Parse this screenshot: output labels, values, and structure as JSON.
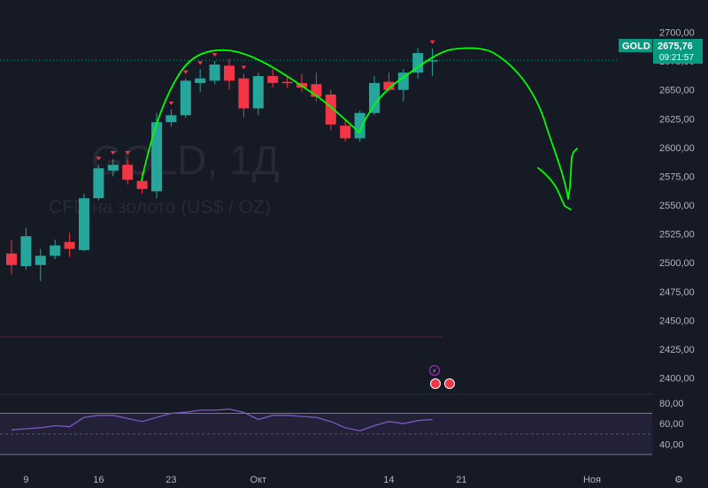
{
  "chart_data": {
    "type": "candlestick",
    "symbol": "GOLD",
    "interval": "1Д",
    "watermark_subtitle": "CFD на золото (US$ / OZ)",
    "last_price_label": "2675,76",
    "countdown": "09:21:57",
    "price_axis": {
      "range": [
        2395,
        2715
      ],
      "ticks": [
        "2700,00",
        "2675,00",
        "2650,00",
        "2625,00",
        "2600,00",
        "2575,00",
        "2550,00",
        "2525,00",
        "2500,00",
        "2475,00",
        "2450,00",
        "2425,00",
        "2400,00"
      ],
      "tick_values": [
        2700,
        2675,
        2650,
        2625,
        2600,
        2575,
        2550,
        2525,
        2500,
        2475,
        2450,
        2425,
        2400
      ]
    },
    "time_axis": {
      "labels": [
        {
          "text": "9",
          "bar": 1
        },
        {
          "text": "16",
          "bar": 6
        },
        {
          "text": "23",
          "bar": 11
        },
        {
          "text": "Окт",
          "bar": 17
        },
        {
          "text": "14",
          "bar": 26
        },
        {
          "text": "21",
          "bar": 31
        },
        {
          "text": "Ноя",
          "bar": 40
        }
      ]
    },
    "last_price": 2675.76,
    "candles": [
      {
        "o": 2508,
        "h": 2520,
        "l": 2490,
        "c": 2498
      },
      {
        "o": 2497,
        "h": 2530,
        "l": 2494,
        "c": 2523
      },
      {
        "o": 2498,
        "h": 2512,
        "l": 2484,
        "c": 2506
      },
      {
        "o": 2506,
        "h": 2520,
        "l": 2503,
        "c": 2515
      },
      {
        "o": 2518,
        "h": 2526,
        "l": 2505,
        "c": 2512
      },
      {
        "o": 2511,
        "h": 2560,
        "l": 2510,
        "c": 2556
      },
      {
        "o": 2556,
        "h": 2585,
        "l": 2554,
        "c": 2582
      },
      {
        "o": 2580,
        "h": 2590,
        "l": 2575,
        "c": 2585
      },
      {
        "o": 2585,
        "h": 2590,
        "l": 2568,
        "c": 2572
      },
      {
        "o": 2571,
        "h": 2578,
        "l": 2560,
        "c": 2564
      },
      {
        "o": 2562,
        "h": 2630,
        "l": 2556,
        "c": 2622
      },
      {
        "o": 2622,
        "h": 2633,
        "l": 2618,
        "c": 2628
      },
      {
        "o": 2628,
        "h": 2660,
        "l": 2626,
        "c": 2658
      },
      {
        "o": 2656,
        "h": 2668,
        "l": 2648,
        "c": 2660
      },
      {
        "o": 2658,
        "h": 2675,
        "l": 2655,
        "c": 2672
      },
      {
        "o": 2671,
        "h": 2677,
        "l": 2650,
        "c": 2658
      },
      {
        "o": 2660,
        "h": 2664,
        "l": 2626,
        "c": 2634
      },
      {
        "o": 2634,
        "h": 2665,
        "l": 2628,
        "c": 2662
      },
      {
        "o": 2662,
        "h": 2668,
        "l": 2652,
        "c": 2656
      },
      {
        "o": 2657,
        "h": 2662,
        "l": 2652,
        "c": 2656
      },
      {
        "o": 2656,
        "h": 2664,
        "l": 2648,
        "c": 2652
      },
      {
        "o": 2655,
        "h": 2665,
        "l": 2640,
        "c": 2644
      },
      {
        "o": 2646,
        "h": 2650,
        "l": 2615,
        "c": 2620
      },
      {
        "o": 2619,
        "h": 2624,
        "l": 2605,
        "c": 2608
      },
      {
        "o": 2608,
        "h": 2632,
        "l": 2605,
        "c": 2630
      },
      {
        "o": 2630,
        "h": 2662,
        "l": 2628,
        "c": 2656
      },
      {
        "o": 2657,
        "h": 2665,
        "l": 2648,
        "c": 2650
      },
      {
        "o": 2650,
        "h": 2668,
        "l": 2640,
        "c": 2665
      },
      {
        "o": 2665,
        "h": 2686,
        "l": 2660,
        "c": 2682
      },
      {
        "o": 2675,
        "h": 2686,
        "l": 2662,
        "c": 2675.76
      }
    ],
    "rsi": {
      "range": [
        25,
        85
      ],
      "ticks": [
        "80,00",
        "60,00",
        "40,00"
      ],
      "tick_values": [
        80,
        60,
        40
      ],
      "band": [
        30,
        70
      ],
      "midline": 50,
      "values": [
        54,
        55,
        56,
        58,
        57,
        66,
        68,
        68,
        65,
        62,
        66,
        70,
        71,
        73,
        73,
        74,
        71,
        64,
        68,
        68,
        67,
        66,
        62,
        56,
        53,
        58,
        62,
        60,
        63,
        64
      ]
    },
    "colors": {
      "up": "#26a69a",
      "down": "#f23645",
      "rsi_line": "#7e57c2",
      "drawing": "#00ff00",
      "last_price_tag": "#089981"
    }
  }
}
